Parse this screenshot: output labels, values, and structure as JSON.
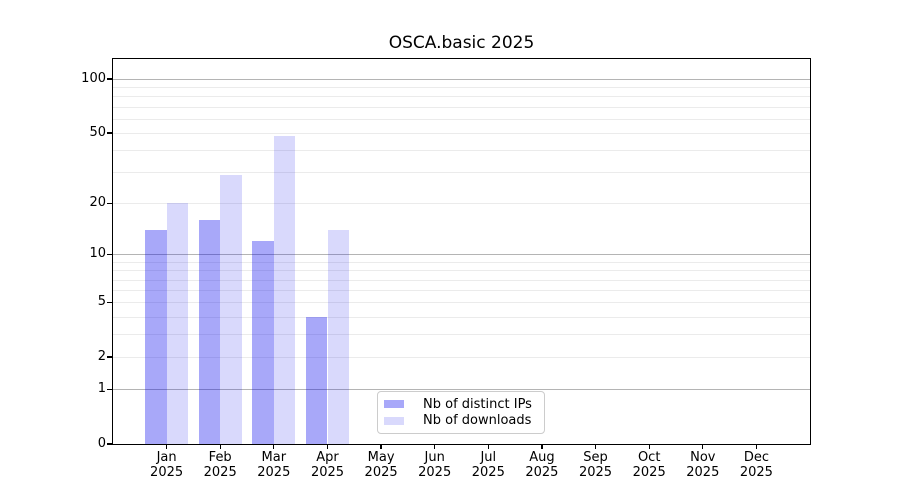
{
  "chart_data": {
    "type": "bar",
    "title": "OSCA.basic 2025",
    "x_axis": {
      "categories": [
        "Jan",
        "Feb",
        "Mar",
        "Apr",
        "May",
        "Jun",
        "Jul",
        "Aug",
        "Sep",
        "Oct",
        "Nov",
        "Dec"
      ],
      "year": "2025"
    },
    "y_axis": {
      "scale": "log1p",
      "ticks": [
        100,
        50,
        20,
        10,
        5,
        2,
        1,
        0
      ],
      "top_value": 129,
      "major_gridlines": [
        1,
        10,
        100
      ],
      "minor_gridlines": [
        2,
        3,
        4,
        5,
        6,
        7,
        8,
        9,
        20,
        30,
        40,
        50,
        60,
        70,
        80,
        90
      ]
    },
    "series": [
      {
        "name": "Nb of distinct IPs",
        "color": "rgba(0,0,238,0.34)",
        "values": [
          14,
          16,
          12,
          4,
          0,
          0,
          0,
          0,
          0,
          0,
          0,
          0
        ]
      },
      {
        "name": "Nb of downloads",
        "color": "rgba(0,0,238,0.15)",
        "values": [
          20,
          29,
          48,
          14,
          0,
          0,
          0,
          0,
          0,
          0,
          0,
          0
        ]
      }
    ],
    "legend": {
      "position": "lower center"
    },
    "colors": {
      "major_grid": "#b4b4b4",
      "minor_grid": "#ebebeb",
      "spine": "#000000"
    }
  }
}
